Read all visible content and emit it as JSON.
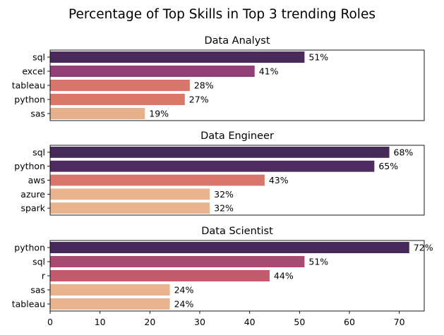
{
  "title": "Percentage of Top Skills in Top 3 trending Roles",
  "chart_data": [
    {
      "type": "bar",
      "orientation": "horizontal",
      "title": "Data Analyst",
      "categories": [
        "sql",
        "excel",
        "tableau",
        "python",
        "sas"
      ],
      "values": [
        51,
        41,
        28,
        27,
        19
      ],
      "data_labels": [
        "51%",
        "41%",
        "28%",
        "27%",
        "19%"
      ],
      "bar_colors": [
        "#4a2a5b",
        "#923f78",
        "#d9756a",
        "#db7767",
        "#e7b08c"
      ],
      "xlim": [
        0,
        75
      ],
      "xticks_visible": false
    },
    {
      "type": "bar",
      "orientation": "horizontal",
      "title": "Data Engineer",
      "categories": [
        "sql",
        "python",
        "aws",
        "azure",
        "spark"
      ],
      "values": [
        68,
        65,
        43,
        32,
        32
      ],
      "data_labels": [
        "68%",
        "65%",
        "43%",
        "32%",
        "32%"
      ],
      "bar_colors": [
        "#462a5a",
        "#4f2a5f",
        "#d9756a",
        "#e8b38d",
        "#e8b38d"
      ],
      "xlim": [
        0,
        75
      ],
      "xticks_visible": false
    },
    {
      "type": "bar",
      "orientation": "horizontal",
      "title": "Data Scientist",
      "categories": [
        "python",
        "sql",
        "r",
        "sas",
        "tableau"
      ],
      "values": [
        72,
        51,
        44,
        24,
        24
      ],
      "data_labels": [
        "72%",
        "51%",
        "44%",
        "24%",
        "24%"
      ],
      "bar_colors": [
        "#46295a",
        "#a84a72",
        "#c25a6b",
        "#e8b38d",
        "#e8b38d"
      ],
      "xlim": [
        0,
        75
      ],
      "xticks": [
        0,
        10,
        20,
        30,
        40,
        50,
        60,
        70
      ],
      "xticks_visible": true
    }
  ]
}
